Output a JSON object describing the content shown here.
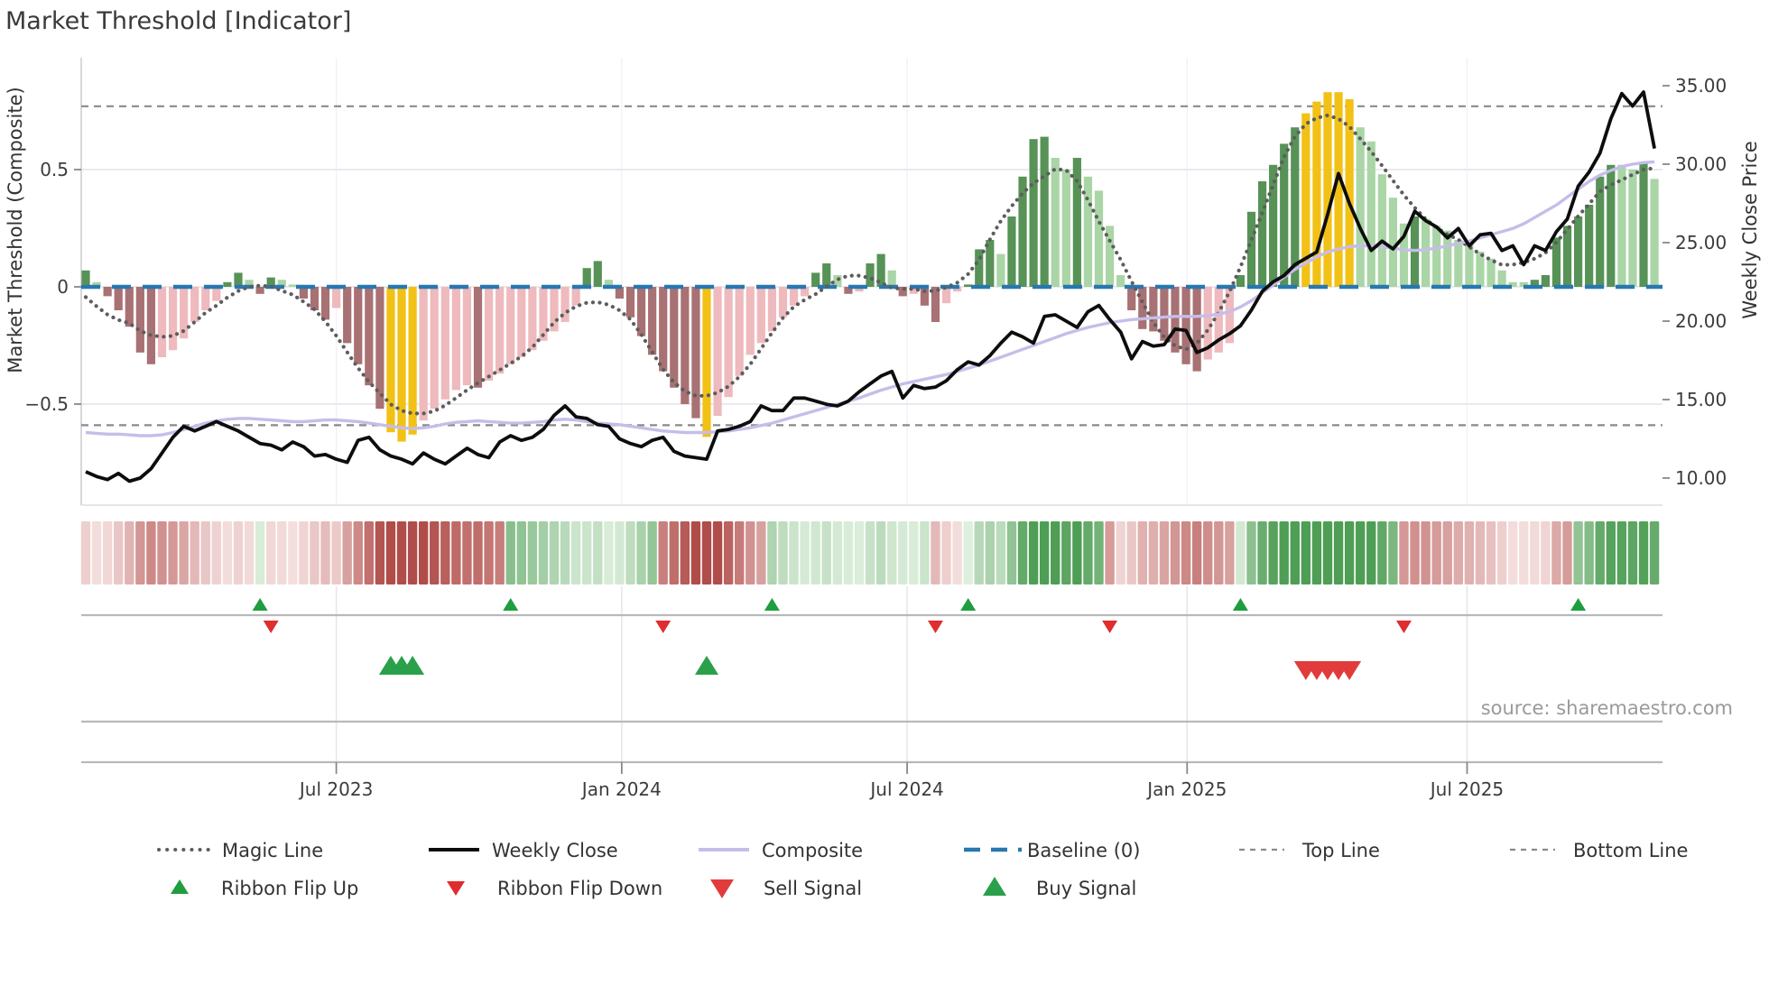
{
  "source": "source: sharemaestro.com",
  "colors": {
    "title_text": "#3a3a3a",
    "axis_text": "#333333",
    "tick_text": "#3c3c3c",
    "grid": "#e9eaf0",
    "grid_vertical": "#e4e5ea",
    "spine": "#b9b9b9",
    "weekly_close": "#0d0d0d",
    "composite_line": "#c6bde9",
    "magic_line": "#5d5d5d",
    "baseline": "#2878b0",
    "top_bottom_line": "#8a8a8a",
    "bar_green_dark": "#579257",
    "bar_green_light": "#aad5a6",
    "bar_pink_dark": "#a87173",
    "bar_pink_light": "#eebabd",
    "bar_gold": "#f2c115",
    "ribbon_green_deep": "#4f9e55",
    "ribbon_green_light": "#e0f0e0",
    "ribbon_pink_deep": "#b04d4a",
    "ribbon_pink_light": "#f6e2e1",
    "flip_up_green": "#1f9d3f",
    "flip_down_red": "#e02d2d",
    "buy_green": "#2aa04a",
    "sell_red": "#e23b3b",
    "source_text": "#9a9a9a"
  },
  "chart_data": {
    "type": "combo: histogram + line + heatmap-ribbon + signal markers",
    "title": "Market Threshold [Indicator]",
    "left_axis": {
      "label": "Market Threshold (Composite)",
      "ticks": [
        {
          "label": "0.5",
          "value": 0.5
        },
        {
          "label": "0",
          "value": 0
        },
        {
          "label": "−0.5",
          "value": -0.5
        }
      ]
    },
    "right_axis": {
      "label": "Weekly Close Price",
      "ticks": [
        {
          "label": "35.00",
          "value": 35
        },
        {
          "label": "30.00",
          "value": 30
        },
        {
          "label": "25.00",
          "value": 25
        },
        {
          "label": "20.00",
          "value": 20
        },
        {
          "label": "15.00",
          "value": 15
        },
        {
          "label": "10.00",
          "value": 10
        }
      ]
    },
    "x_axis": {
      "ticks": [
        {
          "label": "Jul 2023",
          "week": 23.0
        },
        {
          "label": "Jan 2024",
          "week": 49.2
        },
        {
          "label": "Jul 2024",
          "week": 75.4
        },
        {
          "label": "Jan 2025",
          "week": 101.1
        },
        {
          "label": "Jul 2025",
          "week": 126.8
        }
      ]
    },
    "reference_lines": {
      "top_line": 0.77,
      "baseline": 0,
      "bottom_line": -0.59
    },
    "extreme_zone": {
      "upper": 0.72,
      "lower": -0.6
    },
    "weeks": 145,
    "series": {
      "composite_histogram": [
        0.07,
        0.02,
        -0.04,
        -0.1,
        -0.17,
        -0.28,
        -0.33,
        -0.3,
        -0.27,
        -0.22,
        -0.15,
        -0.1,
        -0.06,
        0.02,
        0.06,
        0.03,
        -0.03,
        0.04,
        0.03,
        0.01,
        -0.05,
        -0.1,
        -0.14,
        -0.09,
        -0.24,
        -0.33,
        -0.42,
        -0.52,
        -0.62,
        -0.66,
        -0.63,
        -0.57,
        -0.52,
        -0.48,
        -0.44,
        -0.42,
        -0.43,
        -0.4,
        -0.37,
        -0.33,
        -0.3,
        -0.27,
        -0.23,
        -0.19,
        -0.15,
        -0.08,
        0.08,
        0.11,
        0.03,
        -0.05,
        -0.13,
        -0.21,
        -0.29,
        -0.36,
        -0.43,
        -0.5,
        -0.56,
        -0.64,
        -0.55,
        -0.47,
        -0.38,
        -0.29,
        -0.24,
        -0.19,
        -0.13,
        -0.08,
        -0.04,
        0.06,
        0.1,
        0.05,
        -0.03,
        -0.02,
        0.1,
        0.14,
        0.07,
        -0.04,
        -0.03,
        -0.08,
        -0.15,
        -0.07,
        -0.02,
        0.01,
        0.16,
        0.2,
        0.14,
        0.3,
        0.47,
        0.63,
        0.64,
        0.55,
        0.5,
        0.55,
        0.47,
        0.41,
        0.26,
        0.05,
        -0.1,
        -0.18,
        -0.19,
        -0.23,
        -0.28,
        -0.33,
        -0.36,
        -0.31,
        -0.28,
        -0.24,
        0.05,
        0.32,
        0.45,
        0.52,
        0.61,
        0.68,
        0.74,
        0.79,
        0.83,
        0.83,
        0.8,
        0.68,
        0.62,
        0.48,
        0.38,
        0.27,
        0.3,
        0.29,
        0.26,
        0.24,
        0.2,
        0.18,
        0.15,
        0.12,
        0.07,
        0.02,
        0.02,
        0.03,
        0.05,
        0.21,
        0.26,
        0.3,
        0.35,
        0.47,
        0.52,
        0.52,
        0.5,
        0.53,
        0.46
      ],
      "weekly_close": [
        10.4,
        10.1,
        9.9,
        10.3,
        9.8,
        10.0,
        10.6,
        11.6,
        12.6,
        13.3,
        13.0,
        13.3,
        13.6,
        13.3,
        13.0,
        12.6,
        12.2,
        12.1,
        11.8,
        12.3,
        12.0,
        11.4,
        11.5,
        11.2,
        11.0,
        12.4,
        12.6,
        11.8,
        11.4,
        11.2,
        10.9,
        11.6,
        11.2,
        10.9,
        11.4,
        11.9,
        11.5,
        11.3,
        12.3,
        12.7,
        12.4,
        12.6,
        13.1,
        14.0,
        14.6,
        13.9,
        13.8,
        13.4,
        13.3,
        12.5,
        12.2,
        12.0,
        12.4,
        12.6,
        11.7,
        11.4,
        11.3,
        11.2,
        13.0,
        13.1,
        13.3,
        13.6,
        14.6,
        14.3,
        14.3,
        15.1,
        15.1,
        14.9,
        14.7,
        14.6,
        14.9,
        15.5,
        16.0,
        16.5,
        16.8,
        15.1,
        15.9,
        15.7,
        15.8,
        16.2,
        16.9,
        17.4,
        17.2,
        17.8,
        18.6,
        19.3,
        19.0,
        18.6,
        20.3,
        20.4,
        20.0,
        19.6,
        20.6,
        21.0,
        20.1,
        19.3,
        17.6,
        18.7,
        18.4,
        18.5,
        19.5,
        19.4,
        18.0,
        18.3,
        18.8,
        19.2,
        19.7,
        20.7,
        21.9,
        22.5,
        22.9,
        23.6,
        24.0,
        24.4,
        26.8,
        29.4,
        27.5,
        25.9,
        24.5,
        25.1,
        24.6,
        25.4,
        27.0,
        26.4,
        26.0,
        25.3,
        25.9,
        24.8,
        25.5,
        25.6,
        24.5,
        24.8,
        23.6,
        24.8,
        24.5,
        25.7,
        26.5,
        28.6,
        29.5,
        30.7,
        32.9,
        34.5,
        33.7,
        34.6,
        31.0
      ],
      "composite_line": [
        12.9,
        12.85,
        12.8,
        12.8,
        12.75,
        12.7,
        12.7,
        12.75,
        12.9,
        13.1,
        13.3,
        13.5,
        13.65,
        13.75,
        13.8,
        13.8,
        13.75,
        13.7,
        13.65,
        13.6,
        13.6,
        13.65,
        13.7,
        13.7,
        13.65,
        13.6,
        13.5,
        13.4,
        13.3,
        13.2,
        13.15,
        13.2,
        13.3,
        13.45,
        13.55,
        13.6,
        13.65,
        13.6,
        13.55,
        13.5,
        13.5,
        13.55,
        13.6,
        13.7,
        13.75,
        13.7,
        13.6,
        13.5,
        13.45,
        13.4,
        13.3,
        13.2,
        13.1,
        13.0,
        12.95,
        12.9,
        12.9,
        12.9,
        12.95,
        13.0,
        13.1,
        13.2,
        13.35,
        13.5,
        13.7,
        13.9,
        14.1,
        14.3,
        14.5,
        14.7,
        14.9,
        15.1,
        15.35,
        15.6,
        15.8,
        16.0,
        16.15,
        16.3,
        16.45,
        16.6,
        16.8,
        17.0,
        17.2,
        17.45,
        17.7,
        17.95,
        18.2,
        18.45,
        18.7,
        18.95,
        19.2,
        19.4,
        19.6,
        19.75,
        19.9,
        20.0,
        20.1,
        20.15,
        20.2,
        20.25,
        20.3,
        20.3,
        20.3,
        20.35,
        20.45,
        20.6,
        20.9,
        21.3,
        21.8,
        22.3,
        22.8,
        23.3,
        23.7,
        24.1,
        24.4,
        24.6,
        24.75,
        24.8,
        24.8,
        24.75,
        24.65,
        24.55,
        24.5,
        24.55,
        24.65,
        24.8,
        24.95,
        25.1,
        25.3,
        25.5,
        25.7,
        25.9,
        26.2,
        26.6,
        27.0,
        27.4,
        27.9,
        28.4,
        28.9,
        29.3,
        29.6,
        29.85,
        30.0,
        30.1,
        30.15
      ],
      "magic_line": {
        "derived": "centered moving average of composite_histogram",
        "window": 9
      }
    },
    "ribbon_green_intervals": [
      [
        16,
        17
      ],
      [
        39,
        53
      ],
      [
        63,
        78
      ],
      [
        81,
        94
      ],
      [
        106,
        121
      ],
      [
        137,
        145
      ]
    ],
    "signals": {
      "ribbon_flip_up_weeks": [
        16,
        39,
        63,
        81,
        106,
        137
      ],
      "ribbon_flip_down_weeks": [
        17,
        53,
        78,
        94,
        121
      ],
      "buy_signal_weeks": [
        28,
        29,
        30,
        57
      ],
      "sell_signal_weeks": [
        112,
        113,
        114,
        115,
        116
      ]
    }
  },
  "legend": {
    "rows": [
      [
        {
          "id": "magic-line",
          "label": "Magic Line",
          "marker": "dotted-line",
          "color_key": "magic_line"
        },
        {
          "id": "weekly-close",
          "label": "Weekly Close",
          "marker": "solid-line",
          "color_key": "weekly_close"
        },
        {
          "id": "composite",
          "label": "Composite",
          "marker": "solid-line",
          "color_key": "composite_line"
        },
        {
          "id": "baseline",
          "label": "Baseline (0)",
          "marker": "dashed-line",
          "color_key": "baseline"
        },
        {
          "id": "top-line",
          "label": "Top Line",
          "marker": "dash-line",
          "color_key": "top_bottom_line"
        },
        {
          "id": "bottom-line",
          "label": "Bottom Line",
          "marker": "dash-line",
          "color_key": "top_bottom_line"
        }
      ],
      [
        {
          "id": "ribbon-flip-up",
          "label": "Ribbon Flip Up",
          "marker": "tri-up-sm",
          "color_key": "flip_up_green"
        },
        {
          "id": "ribbon-flip-down",
          "label": "Ribbon Flip Down",
          "marker": "tri-down-sm",
          "color_key": "flip_down_red"
        },
        {
          "id": "sell-signal",
          "label": "Sell Signal",
          "marker": "tri-down-lg",
          "color_key": "sell_red"
        },
        {
          "id": "buy-signal",
          "label": "Buy Signal",
          "marker": "tri-up-lg",
          "color_key": "buy_green"
        }
      ]
    ]
  }
}
